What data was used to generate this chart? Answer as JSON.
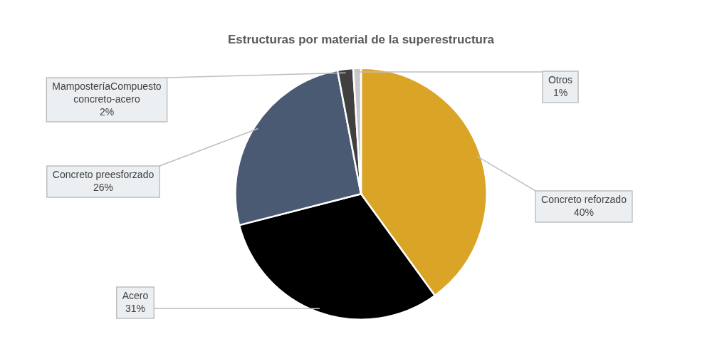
{
  "chart_data": {
    "type": "pie",
    "title": "Estructuras por material de la superestructura",
    "categories": [
      "Concreto reforzado",
      "Acero",
      "Concreto preesforzado",
      "MamposteríaCompuesto concreto-acero",
      "Otros"
    ],
    "values": [
      40,
      31,
      26,
      2,
      1
    ],
    "value_labels": [
      "40%",
      "31%",
      "26%",
      "2%",
      "1%"
    ],
    "colors": [
      "#daa526",
      "#000000",
      "#4a5a72",
      "#404040",
      "#c8c8c8"
    ],
    "legend": false
  }
}
